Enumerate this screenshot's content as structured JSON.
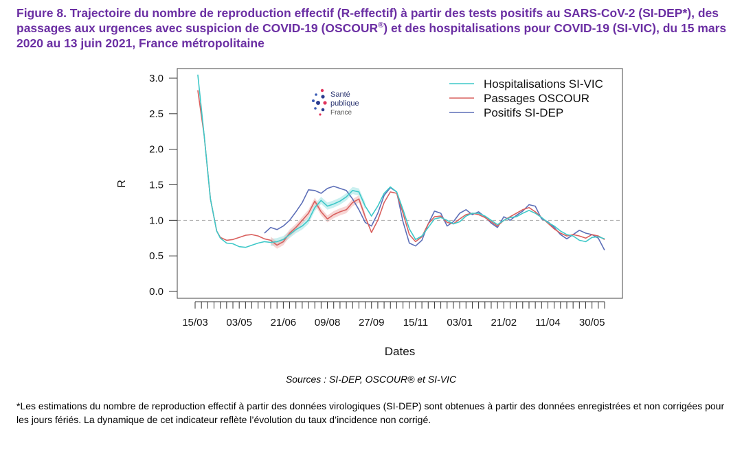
{
  "figure": {
    "title_pre": "Figure 8. Trajectoire du nombre de reproduction effectif (R-effectif) à partir des tests positifs au SARS-CoV-2 (SI-DEP*), des passages aux urgences avec suspicion de COVID-19 (OSCOUR",
    "title_sup": "®",
    "title_post": ") et des hospitalisations pour COVID-19 (SI-VIC), du 15 mars 2020 au 13 juin 2021, France métropolitaine",
    "sources": "Sources : SI-DEP, OSCOUR® et SI-VIC",
    "footnote": "*Les estimations du nombre de reproduction effectif à partir des données virologiques (SI-DEP) sont obtenues à partir des données enregistrées et non corrigées pour les jours fériés. La dynamique de cet indicateur reflète l’évolution du taux d’incidence non corrigé."
  },
  "logo": {
    "line1": "Santé",
    "line2": "publique",
    "line3": "France"
  },
  "chart_data": {
    "type": "line",
    "xlabel": "Dates",
    "ylabel": "R",
    "x_range": [
      "2020-03-15",
      "2021-06-13"
    ],
    "ylim": [
      0,
      3
    ],
    "yticks": [
      0.0,
      0.5,
      1.0,
      1.5,
      2.0,
      2.5,
      3.0
    ],
    "ytick_labels": [
      "0.0",
      "0.5",
      "1.0",
      "1.5",
      "2.0",
      "2.5",
      "3.0"
    ],
    "xtick_labels": [
      {
        "date": "2020-03-15",
        "label": "15/03"
      },
      {
        "date": "2020-05-03",
        "label": "03/05"
      },
      {
        "date": "2020-06-21",
        "label": "21/06"
      },
      {
        "date": "2020-08-09",
        "label": "09/08"
      },
      {
        "date": "2020-09-27",
        "label": "27/09"
      },
      {
        "date": "2020-11-15",
        "label": "15/11"
      },
      {
        "date": "2021-01-03",
        "label": "03/01"
      },
      {
        "date": "2021-02-21",
        "label": "21/02"
      },
      {
        "date": "2021-04-11",
        "label": "11/04"
      },
      {
        "date": "2021-05-30",
        "label": "30/05"
      }
    ],
    "reference_line": 1.0,
    "legend_position": "top-right",
    "series": [
      {
        "name": "Hospitalisations SI-VIC",
        "color": "#3ec8c8",
        "band_color": "#9fe3e3",
        "points": [
          [
            "2020-03-18",
            3.05
          ],
          [
            "2020-03-25",
            2.2
          ],
          [
            "2020-04-01",
            1.3
          ],
          [
            "2020-04-08",
            0.85
          ],
          [
            "2020-04-12",
            0.75
          ],
          [
            "2020-04-19",
            0.68
          ],
          [
            "2020-04-26",
            0.67
          ],
          [
            "2020-05-03",
            0.63
          ],
          [
            "2020-05-10",
            0.62
          ],
          [
            "2020-05-17",
            0.65
          ],
          [
            "2020-05-24",
            0.68
          ],
          [
            "2020-05-31",
            0.7
          ],
          [
            "2020-06-07",
            0.69
          ],
          [
            "2020-06-14",
            0.7
          ],
          [
            "2020-06-21",
            0.73
          ],
          [
            "2020-06-28",
            0.8
          ],
          [
            "2020-07-05",
            0.87
          ],
          [
            "2020-07-12",
            0.92
          ],
          [
            "2020-07-19",
            1.0
          ],
          [
            "2020-07-26",
            1.18
          ],
          [
            "2020-08-02",
            1.28
          ],
          [
            "2020-08-09",
            1.2
          ],
          [
            "2020-08-16",
            1.23
          ],
          [
            "2020-08-23",
            1.27
          ],
          [
            "2020-08-30",
            1.33
          ],
          [
            "2020-09-06",
            1.42
          ],
          [
            "2020-09-13",
            1.4
          ],
          [
            "2020-09-20",
            1.2
          ],
          [
            "2020-09-27",
            1.06
          ],
          [
            "2020-10-04",
            1.2
          ],
          [
            "2020-10-11",
            1.38
          ],
          [
            "2020-10-18",
            1.47
          ],
          [
            "2020-10-25",
            1.4
          ],
          [
            "2020-11-01",
            1.15
          ],
          [
            "2020-11-08",
            0.88
          ],
          [
            "2020-11-15",
            0.73
          ],
          [
            "2020-11-22",
            0.78
          ],
          [
            "2020-11-29",
            0.9
          ],
          [
            "2020-12-06",
            1.02
          ],
          [
            "2020-12-13",
            1.04
          ],
          [
            "2020-12-20",
            1.0
          ],
          [
            "2020-12-27",
            0.95
          ],
          [
            "2021-01-03",
            0.98
          ],
          [
            "2021-01-10",
            1.06
          ],
          [
            "2021-01-17",
            1.1
          ],
          [
            "2021-01-24",
            1.1
          ],
          [
            "2021-01-31",
            1.06
          ],
          [
            "2021-02-07",
            1.0
          ],
          [
            "2021-02-14",
            0.94
          ],
          [
            "2021-02-21",
            1.0
          ],
          [
            "2021-02-28",
            1.04
          ],
          [
            "2021-03-07",
            1.05
          ],
          [
            "2021-03-14",
            1.1
          ],
          [
            "2021-03-21",
            1.14
          ],
          [
            "2021-03-28",
            1.1
          ],
          [
            "2021-04-04",
            1.04
          ],
          [
            "2021-04-11",
            0.97
          ],
          [
            "2021-04-18",
            0.92
          ],
          [
            "2021-04-25",
            0.85
          ],
          [
            "2021-05-02",
            0.8
          ],
          [
            "2021-05-09",
            0.78
          ],
          [
            "2021-05-16",
            0.72
          ],
          [
            "2021-05-23",
            0.7
          ],
          [
            "2021-05-30",
            0.76
          ],
          [
            "2021-06-06",
            0.77
          ],
          [
            "2021-06-13",
            0.74
          ]
        ]
      },
      {
        "name": "Passages OSCOUR",
        "color": "#d9605e",
        "band_color": "#f0b4b2",
        "points": [
          [
            "2020-03-18",
            2.83
          ],
          [
            "2020-03-25",
            2.2
          ],
          [
            "2020-04-01",
            1.3
          ],
          [
            "2020-04-08",
            0.85
          ],
          [
            "2020-04-12",
            0.76
          ],
          [
            "2020-04-19",
            0.72
          ],
          [
            "2020-04-26",
            0.73
          ],
          [
            "2020-05-03",
            0.76
          ],
          [
            "2020-05-10",
            0.79
          ],
          [
            "2020-05-17",
            0.8
          ],
          [
            "2020-05-24",
            0.78
          ],
          [
            "2020-05-31",
            0.74
          ],
          [
            "2020-06-07",
            0.72
          ],
          [
            "2020-06-14",
            0.65
          ],
          [
            "2020-06-21",
            0.7
          ],
          [
            "2020-06-28",
            0.82
          ],
          [
            "2020-07-05",
            0.9
          ],
          [
            "2020-07-12",
            1.0
          ],
          [
            "2020-07-19",
            1.1
          ],
          [
            "2020-07-26",
            1.27
          ],
          [
            "2020-08-02",
            1.12
          ],
          [
            "2020-08-09",
            1.02
          ],
          [
            "2020-08-16",
            1.08
          ],
          [
            "2020-08-23",
            1.12
          ],
          [
            "2020-08-30",
            1.15
          ],
          [
            "2020-09-06",
            1.25
          ],
          [
            "2020-09-13",
            1.3
          ],
          [
            "2020-09-20",
            1.05
          ],
          [
            "2020-09-27",
            0.83
          ],
          [
            "2020-10-04",
            1.0
          ],
          [
            "2020-10-11",
            1.25
          ],
          [
            "2020-10-18",
            1.4
          ],
          [
            "2020-10-25",
            1.38
          ],
          [
            "2020-11-01",
            1.1
          ],
          [
            "2020-11-08",
            0.8
          ],
          [
            "2020-11-15",
            0.7
          ],
          [
            "2020-11-22",
            0.77
          ],
          [
            "2020-11-29",
            0.95
          ],
          [
            "2020-12-06",
            1.05
          ],
          [
            "2020-12-13",
            1.06
          ],
          [
            "2020-12-20",
            0.97
          ],
          [
            "2020-12-27",
            0.95
          ],
          [
            "2021-01-03",
            1.02
          ],
          [
            "2021-01-10",
            1.08
          ],
          [
            "2021-01-17",
            1.1
          ],
          [
            "2021-01-24",
            1.08
          ],
          [
            "2021-01-31",
            1.04
          ],
          [
            "2021-02-07",
            0.98
          ],
          [
            "2021-02-14",
            0.92
          ],
          [
            "2021-02-21",
            1.0
          ],
          [
            "2021-02-28",
            1.05
          ],
          [
            "2021-03-07",
            1.1
          ],
          [
            "2021-03-14",
            1.15
          ],
          [
            "2021-03-21",
            1.18
          ],
          [
            "2021-03-28",
            1.12
          ],
          [
            "2021-04-04",
            1.04
          ],
          [
            "2021-04-11",
            0.96
          ],
          [
            "2021-04-18",
            0.88
          ],
          [
            "2021-04-25",
            0.82
          ],
          [
            "2021-05-02",
            0.78
          ],
          [
            "2021-05-09",
            0.8
          ],
          [
            "2021-05-16",
            0.78
          ],
          [
            "2021-05-23",
            0.75
          ],
          [
            "2021-05-30",
            0.8
          ],
          [
            "2021-06-06",
            0.78
          ],
          [
            "2021-06-13",
            0.73
          ]
        ]
      },
      {
        "name": "Positifs SI-DEP",
        "color": "#5d6fb8",
        "points": [
          [
            "2020-05-31",
            0.82
          ],
          [
            "2020-06-07",
            0.9
          ],
          [
            "2020-06-14",
            0.87
          ],
          [
            "2020-06-21",
            0.92
          ],
          [
            "2020-06-28",
            1.0
          ],
          [
            "2020-07-05",
            1.12
          ],
          [
            "2020-07-12",
            1.25
          ],
          [
            "2020-07-19",
            1.43
          ],
          [
            "2020-07-26",
            1.42
          ],
          [
            "2020-08-02",
            1.38
          ],
          [
            "2020-08-09",
            1.45
          ],
          [
            "2020-08-16",
            1.48
          ],
          [
            "2020-08-23",
            1.45
          ],
          [
            "2020-08-30",
            1.42
          ],
          [
            "2020-09-06",
            1.3
          ],
          [
            "2020-09-13",
            1.15
          ],
          [
            "2020-09-20",
            0.97
          ],
          [
            "2020-09-27",
            0.92
          ],
          [
            "2020-10-04",
            1.1
          ],
          [
            "2020-10-11",
            1.35
          ],
          [
            "2020-10-18",
            1.46
          ],
          [
            "2020-10-25",
            1.4
          ],
          [
            "2020-11-01",
            0.98
          ],
          [
            "2020-11-08",
            0.68
          ],
          [
            "2020-11-15",
            0.64
          ],
          [
            "2020-11-22",
            0.72
          ],
          [
            "2020-11-29",
            0.95
          ],
          [
            "2020-12-06",
            1.13
          ],
          [
            "2020-12-13",
            1.1
          ],
          [
            "2020-12-20",
            0.92
          ],
          [
            "2020-12-27",
            0.98
          ],
          [
            "2021-01-03",
            1.1
          ],
          [
            "2021-01-10",
            1.15
          ],
          [
            "2021-01-17",
            1.08
          ],
          [
            "2021-01-24",
            1.12
          ],
          [
            "2021-01-31",
            1.05
          ],
          [
            "2021-02-07",
            0.96
          ],
          [
            "2021-02-14",
            0.9
          ],
          [
            "2021-02-21",
            1.05
          ],
          [
            "2021-02-28",
            1.0
          ],
          [
            "2021-03-07",
            1.07
          ],
          [
            "2021-03-14",
            1.13
          ],
          [
            "2021-03-21",
            1.22
          ],
          [
            "2021-03-28",
            1.2
          ],
          [
            "2021-04-04",
            1.02
          ],
          [
            "2021-04-11",
            0.98
          ],
          [
            "2021-04-18",
            0.9
          ],
          [
            "2021-04-25",
            0.8
          ],
          [
            "2021-05-02",
            0.74
          ],
          [
            "2021-05-09",
            0.8
          ],
          [
            "2021-05-16",
            0.86
          ],
          [
            "2021-05-23",
            0.82
          ],
          [
            "2021-05-30",
            0.8
          ],
          [
            "2021-06-06",
            0.75
          ],
          [
            "2021-06-13",
            0.58
          ]
        ]
      }
    ]
  }
}
